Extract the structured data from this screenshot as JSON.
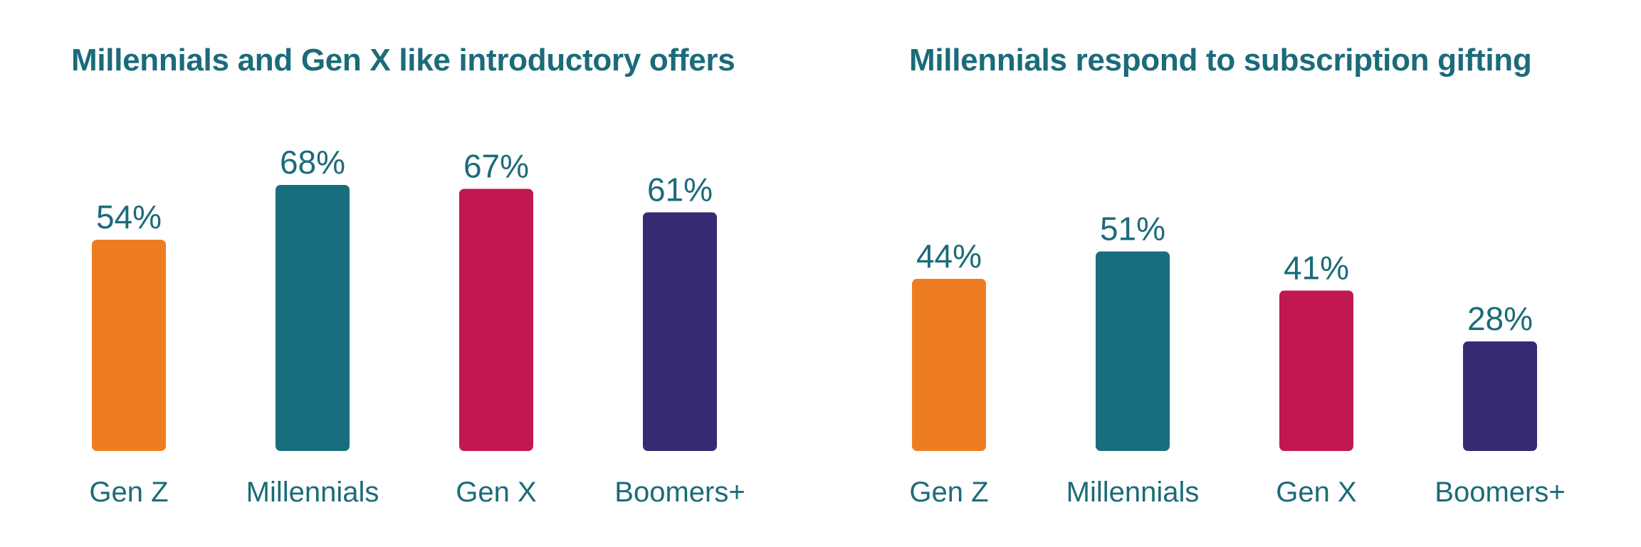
{
  "chart_data": [
    {
      "type": "bar",
      "title": "Millennials and Gen X like introductory offers",
      "categories": [
        "Gen Z",
        "Millennials",
        "Gen X",
        "Boomers+"
      ],
      "values": [
        54,
        68,
        67,
        61
      ],
      "value_labels": [
        "54%",
        "68%",
        "67%",
        "61%"
      ],
      "colors": [
        "#ee7d22",
        "#186e7d",
        "#c11850",
        "#352b72"
      ],
      "ylim": [
        0,
        100
      ],
      "xlabel": "",
      "ylabel": "",
      "grid": false
    },
    {
      "type": "bar",
      "title": "Millennials respond to subscription gifting",
      "categories": [
        "Gen Z",
        "Millennials",
        "Gen X",
        "Boomers+"
      ],
      "values": [
        44,
        51,
        41,
        28
      ],
      "value_labels": [
        "44%",
        "51%",
        "41%",
        "28%"
      ],
      "colors": [
        "#ee7d22",
        "#186e7d",
        "#c11850",
        "#352b72"
      ],
      "ylim": [
        0,
        100
      ],
      "xlabel": "",
      "ylabel": "",
      "grid": false
    }
  ]
}
